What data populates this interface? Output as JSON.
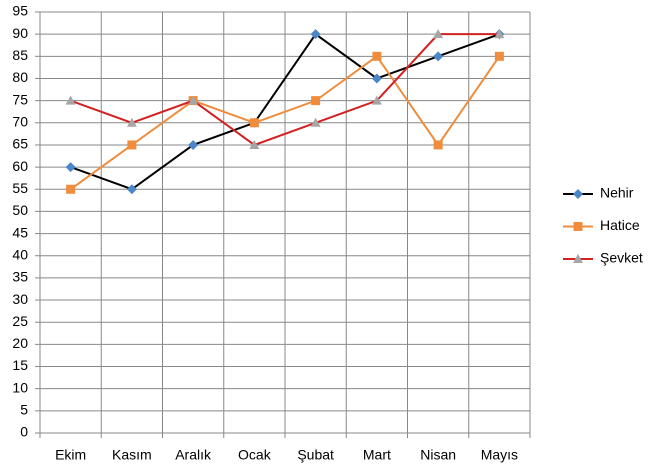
{
  "chart_data": {
    "type": "line",
    "categories": [
      "Ekim",
      "Kasım",
      "Aralık",
      "Ocak",
      "Şubat",
      "Mart",
      "Nisan",
      "Mayıs"
    ],
    "series": [
      {
        "name": "Nehir",
        "color": "#000000",
        "marker_color": "#4a86c8",
        "marker": "diamond",
        "values": [
          60,
          55,
          65,
          70,
          90,
          80,
          85,
          90
        ]
      },
      {
        "name": "Hatice",
        "color": "#f08c3c",
        "marker_color": "#f08c3c",
        "marker": "square",
        "values": [
          55,
          65,
          75,
          70,
          75,
          85,
          65,
          85
        ]
      },
      {
        "name": "Şevket",
        "color": "#d42020",
        "marker_color": "#a6a6a6",
        "marker": "triangle",
        "values": [
          75,
          70,
          75,
          65,
          70,
          75,
          90,
          90
        ]
      }
    ],
    "ylim": [
      0,
      95
    ],
    "yticks": [
      0,
      5,
      10,
      15,
      20,
      25,
      30,
      35,
      40,
      45,
      50,
      55,
      60,
      65,
      70,
      75,
      80,
      85,
      90,
      95
    ],
    "grid": true,
    "legend": "right"
  }
}
